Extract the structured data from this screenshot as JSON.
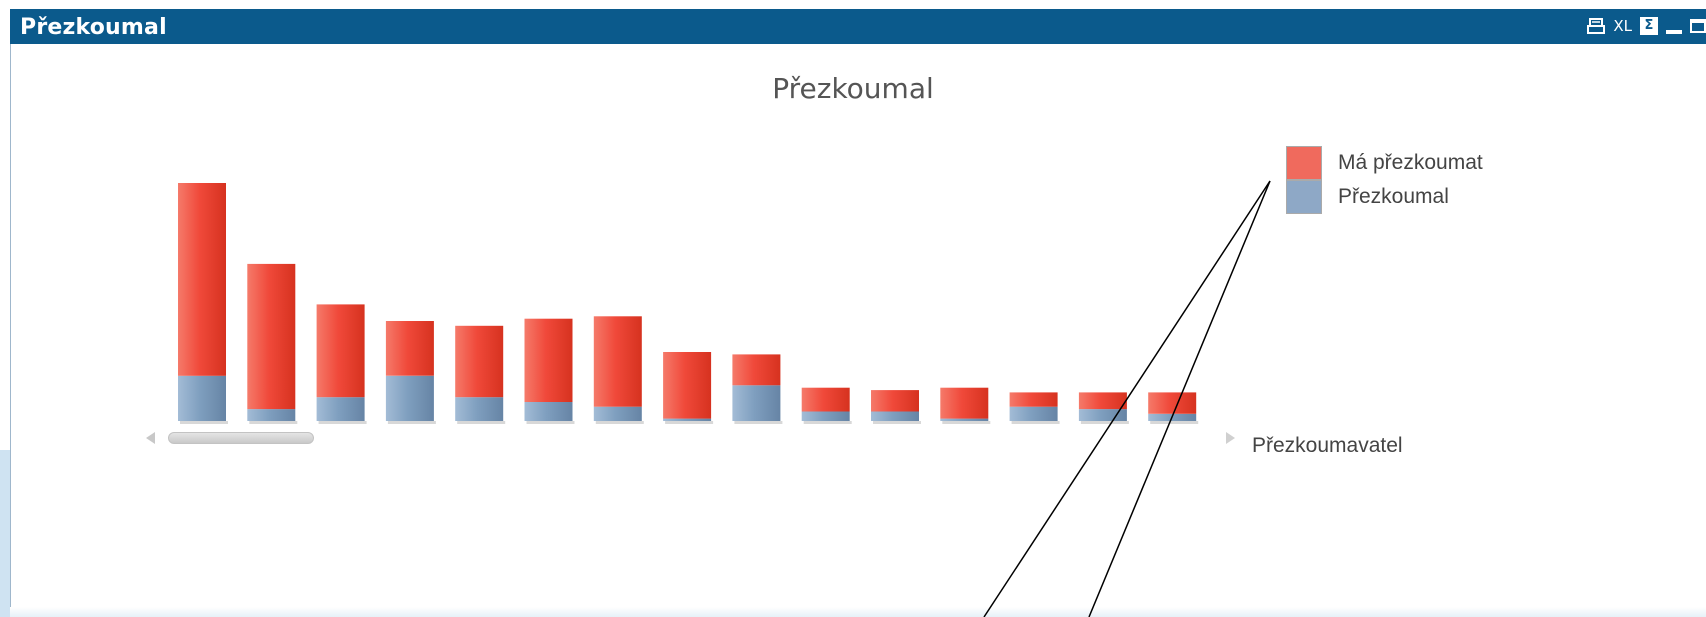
{
  "window": {
    "title": "Přezkoumal",
    "icons": {
      "print": "print-icon",
      "xl": "XL",
      "sigma": "Σ",
      "minimize": "minimize-icon",
      "maximize": "maximize-icon"
    },
    "caption_color": "#0b5a8c"
  },
  "chart_data": {
    "type": "bar",
    "stacked": true,
    "title": "Přezkoumal",
    "xlabel": "Přezkoumavatel",
    "ylabel": "",
    "ylim": [
      0,
      100
    ],
    "grid": false,
    "legend_position": "top-right",
    "categories": [
      "",
      "",
      "",
      "",
      "",
      "",
      "",
      "",
      "",
      "",
      "",
      "",
      "",
      "",
      ""
    ],
    "series": [
      {
        "name": "Přezkoumal",
        "color": "#7f9fbf",
        "values": [
          19,
          5,
          10,
          19,
          10,
          8,
          6,
          1,
          15,
          4,
          4,
          1,
          6,
          5,
          3
        ]
      },
      {
        "name": "Má přezkoumat",
        "color": "#f0493a",
        "values": [
          81,
          61,
          39,
          23,
          30,
          35,
          38,
          28,
          13,
          10,
          9,
          13,
          6,
          7,
          9
        ]
      }
    ],
    "scrollbar": true
  }
}
